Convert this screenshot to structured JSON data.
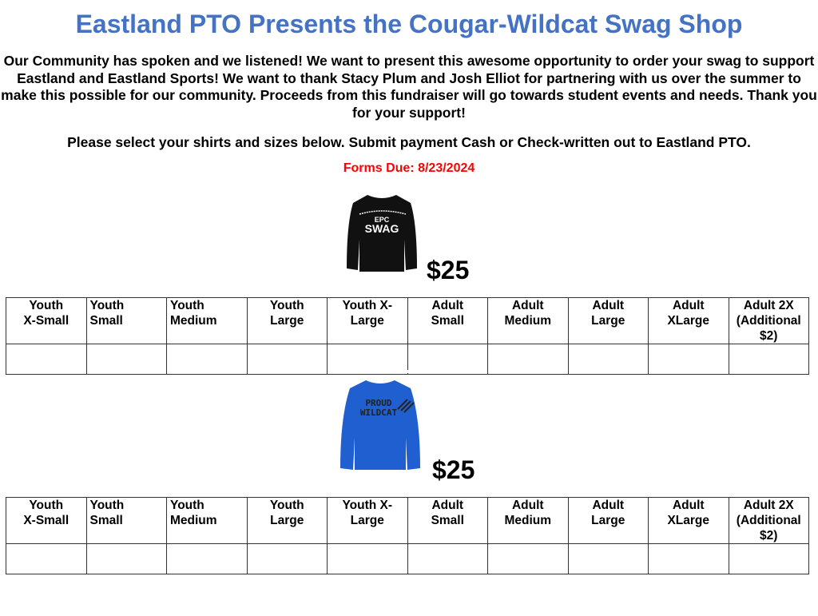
{
  "title": "Eastland PTO Presents the Cougar-Wildcat Swag Shop",
  "intro": "Our Community has spoken and we listened! We want to present this awesome opportunity to order your swag to support Eastland and Eastland Sports! We want to thank Stacy Plum and Josh Elliot for partnering with us over the summer to make this possible for our community. Proceeds from this fundraiser will go towards student events and needs. Thank you for your support!",
  "instructions": "Please select your shirts and sizes below. Submit payment Cash or Check-written out to Eastland PTO.",
  "due": "Forms Due: 8/23/2024",
  "products": [
    {
      "image_text": [
        "EPC",
        "SWAG"
      ],
      "color": "#111111",
      "price": "$25"
    },
    {
      "image_text": [
        "PROUD",
        "WILDCAT"
      ],
      "color": "#1f5fd0",
      "price": "$25"
    }
  ],
  "sizes": [
    [
      "Youth",
      "X-Small"
    ],
    [
      "Youth",
      "Small"
    ],
    [
      "Youth",
      "Medium"
    ],
    [
      "Youth",
      "Large"
    ],
    [
      "Youth X-",
      "Large"
    ],
    [
      "Adult",
      "Small"
    ],
    [
      "Adult",
      "Medium"
    ],
    [
      "Adult",
      "Large"
    ],
    [
      "Adult",
      "XLarge"
    ],
    [
      "Adult 2X",
      "(Additional",
      "$2)"
    ]
  ]
}
